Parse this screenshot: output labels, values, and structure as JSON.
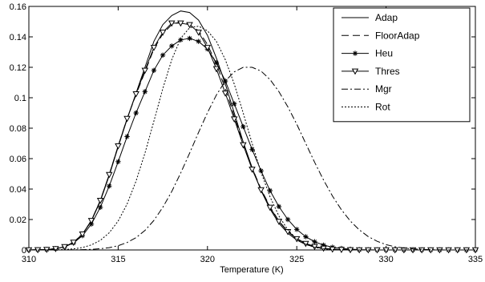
{
  "chart_data": {
    "type": "line",
    "title": "",
    "xlabel": "Temperature (K)",
    "ylabel": "",
    "xlim": [
      310,
      335
    ],
    "ylim": [
      0,
      0.16
    ],
    "xticks": [
      "310",
      "315",
      "320",
      "325",
      "330",
      "335"
    ],
    "yticks": [
      "0",
      "0.02",
      "0.04",
      "0.06",
      "0.08",
      "0.1",
      "0.12",
      "0.14",
      "0.16"
    ],
    "grid": false,
    "legend_position": "top-right",
    "x": [
      310,
      310.5,
      311,
      311.5,
      312,
      312.5,
      313,
      313.5,
      314,
      314.5,
      315,
      315.5,
      316,
      316.5,
      317,
      317.5,
      318,
      318.5,
      319,
      319.5,
      320,
      320.5,
      321,
      321.5,
      322,
      322.5,
      323,
      323.5,
      324,
      324.5,
      325,
      325.5,
      326,
      326.5,
      327,
      327.5,
      328,
      328.5,
      329,
      329.5,
      330,
      330.5,
      331,
      331.5,
      332,
      332.5,
      333,
      333.5,
      334,
      334.5,
      335
    ],
    "series": [
      {
        "name": "Adap",
        "style": "solid",
        "marker": "none",
        "values": [
          0.0,
          0.0001,
          0.0003,
          0.0008,
          0.0021,
          0.0049,
          0.0102,
          0.019,
          0.032,
          0.0489,
          0.0677,
          0.0859,
          0.103,
          0.12,
          0.137,
          0.148,
          0.154,
          0.157,
          0.156,
          0.151,
          0.141,
          0.126,
          0.109,
          0.09,
          0.071,
          0.054,
          0.039,
          0.027,
          0.0175,
          0.011,
          0.0065,
          0.0036,
          0.0019,
          0.0009,
          0.0004,
          0.0002,
          0.0001,
          0.0,
          0.0,
          0.0,
          0.0,
          0.0,
          0.0,
          0.0,
          0.0,
          0.0,
          0.0,
          0.0,
          0.0,
          0.0,
          0.0
        ]
      },
      {
        "name": "FloorAdap",
        "style": "dashed",
        "marker": "none",
        "values": [
          0.0,
          0.0001,
          0.0003,
          0.0008,
          0.0021,
          0.005,
          0.0104,
          0.0193,
          0.0325,
          0.0495,
          0.0683,
          0.0863,
          0.102,
          0.117,
          0.132,
          0.142,
          0.148,
          0.15,
          0.148,
          0.144,
          0.135,
          0.122,
          0.106,
          0.088,
          0.07,
          0.054,
          0.04,
          0.0285,
          0.019,
          0.0123,
          0.0075,
          0.0043,
          0.0023,
          0.0012,
          0.0006,
          0.0003,
          0.0001,
          0.0,
          0.0,
          0.0,
          0.0,
          0.0,
          0.0,
          0.0,
          0.0,
          0.0,
          0.0,
          0.0,
          0.0,
          0.0,
          0.0
        ]
      },
      {
        "name": "Heu",
        "style": "solid",
        "marker": "star",
        "values": [
          0.0,
          0.0001,
          0.0003,
          0.0008,
          0.002,
          0.0046,
          0.0094,
          0.017,
          0.028,
          0.042,
          0.058,
          0.0745,
          0.09,
          0.104,
          0.118,
          0.128,
          0.134,
          0.138,
          0.139,
          0.137,
          0.132,
          0.123,
          0.111,
          0.096,
          0.081,
          0.066,
          0.052,
          0.039,
          0.0285,
          0.02,
          0.0135,
          0.0087,
          0.0054,
          0.0032,
          0.0018,
          0.001,
          0.0005,
          0.0002,
          0.0001,
          0.0,
          0.0,
          0.0,
          0.0,
          0.0,
          0.0,
          0.0,
          0.0,
          0.0,
          0.0,
          0.0,
          0.0
        ]
      },
      {
        "name": "Thres",
        "style": "solid",
        "marker": "triangle-down",
        "values": [
          0.0,
          0.0001,
          0.0003,
          0.0008,
          0.0021,
          0.005,
          0.0104,
          0.0193,
          0.0325,
          0.0495,
          0.0683,
          0.0863,
          0.1025,
          0.118,
          0.133,
          0.143,
          0.149,
          0.149,
          0.148,
          0.143,
          0.133,
          0.119,
          0.103,
          0.086,
          0.069,
          0.053,
          0.0395,
          0.028,
          0.0187,
          0.012,
          0.0073,
          0.0042,
          0.0022,
          0.0011,
          0.0005,
          0.0002,
          0.0001,
          0.0,
          0.0,
          0.0,
          0.0,
          0.0,
          0.0,
          0.0,
          0.0,
          0.0,
          0.0,
          0.0,
          0.0,
          0.0,
          0.0
        ]
      },
      {
        "name": "Mgr",
        "style": "dashdot",
        "marker": "none",
        "values": [
          0.0,
          0.0,
          0.0,
          0.0,
          0.0,
          0.0001,
          0.0002,
          0.0004,
          0.0008,
          0.0015,
          0.0028,
          0.0049,
          0.0081,
          0.0128,
          0.0194,
          0.028,
          0.0384,
          0.0505,
          0.0636,
          0.0772,
          0.0902,
          0.1018,
          0.111,
          0.117,
          0.12,
          0.12,
          0.1175,
          0.112,
          0.104,
          0.094,
          0.0826,
          0.07,
          0.0576,
          0.0459,
          0.0354,
          0.0264,
          0.019,
          0.0132,
          0.0088,
          0.0057,
          0.0035,
          0.0021,
          0.0012,
          0.0007,
          0.0004,
          0.0002,
          0.0001,
          0.0,
          0.0,
          0.0,
          0.0
        ]
      },
      {
        "name": "Rot",
        "style": "dotted",
        "marker": "none",
        "values": [
          0.0,
          0.0,
          0.0,
          0.0001,
          0.0003,
          0.0007,
          0.0016,
          0.0033,
          0.0063,
          0.0113,
          0.019,
          0.0302,
          0.0452,
          0.0636,
          0.0846,
          0.106,
          0.125,
          0.139,
          0.146,
          0.147,
          0.144,
          0.137,
          0.125,
          0.109,
          0.09,
          0.07,
          0.051,
          0.035,
          0.0223,
          0.0132,
          0.0072,
          0.0037,
          0.0017,
          0.0007,
          0.0003,
          0.0001,
          0.0,
          0.0,
          0.0,
          0.0,
          0.0,
          0.0,
          0.0,
          0.0,
          0.0,
          0.0,
          0.0,
          0.0,
          0.0,
          0.0,
          0.0
        ]
      }
    ]
  }
}
